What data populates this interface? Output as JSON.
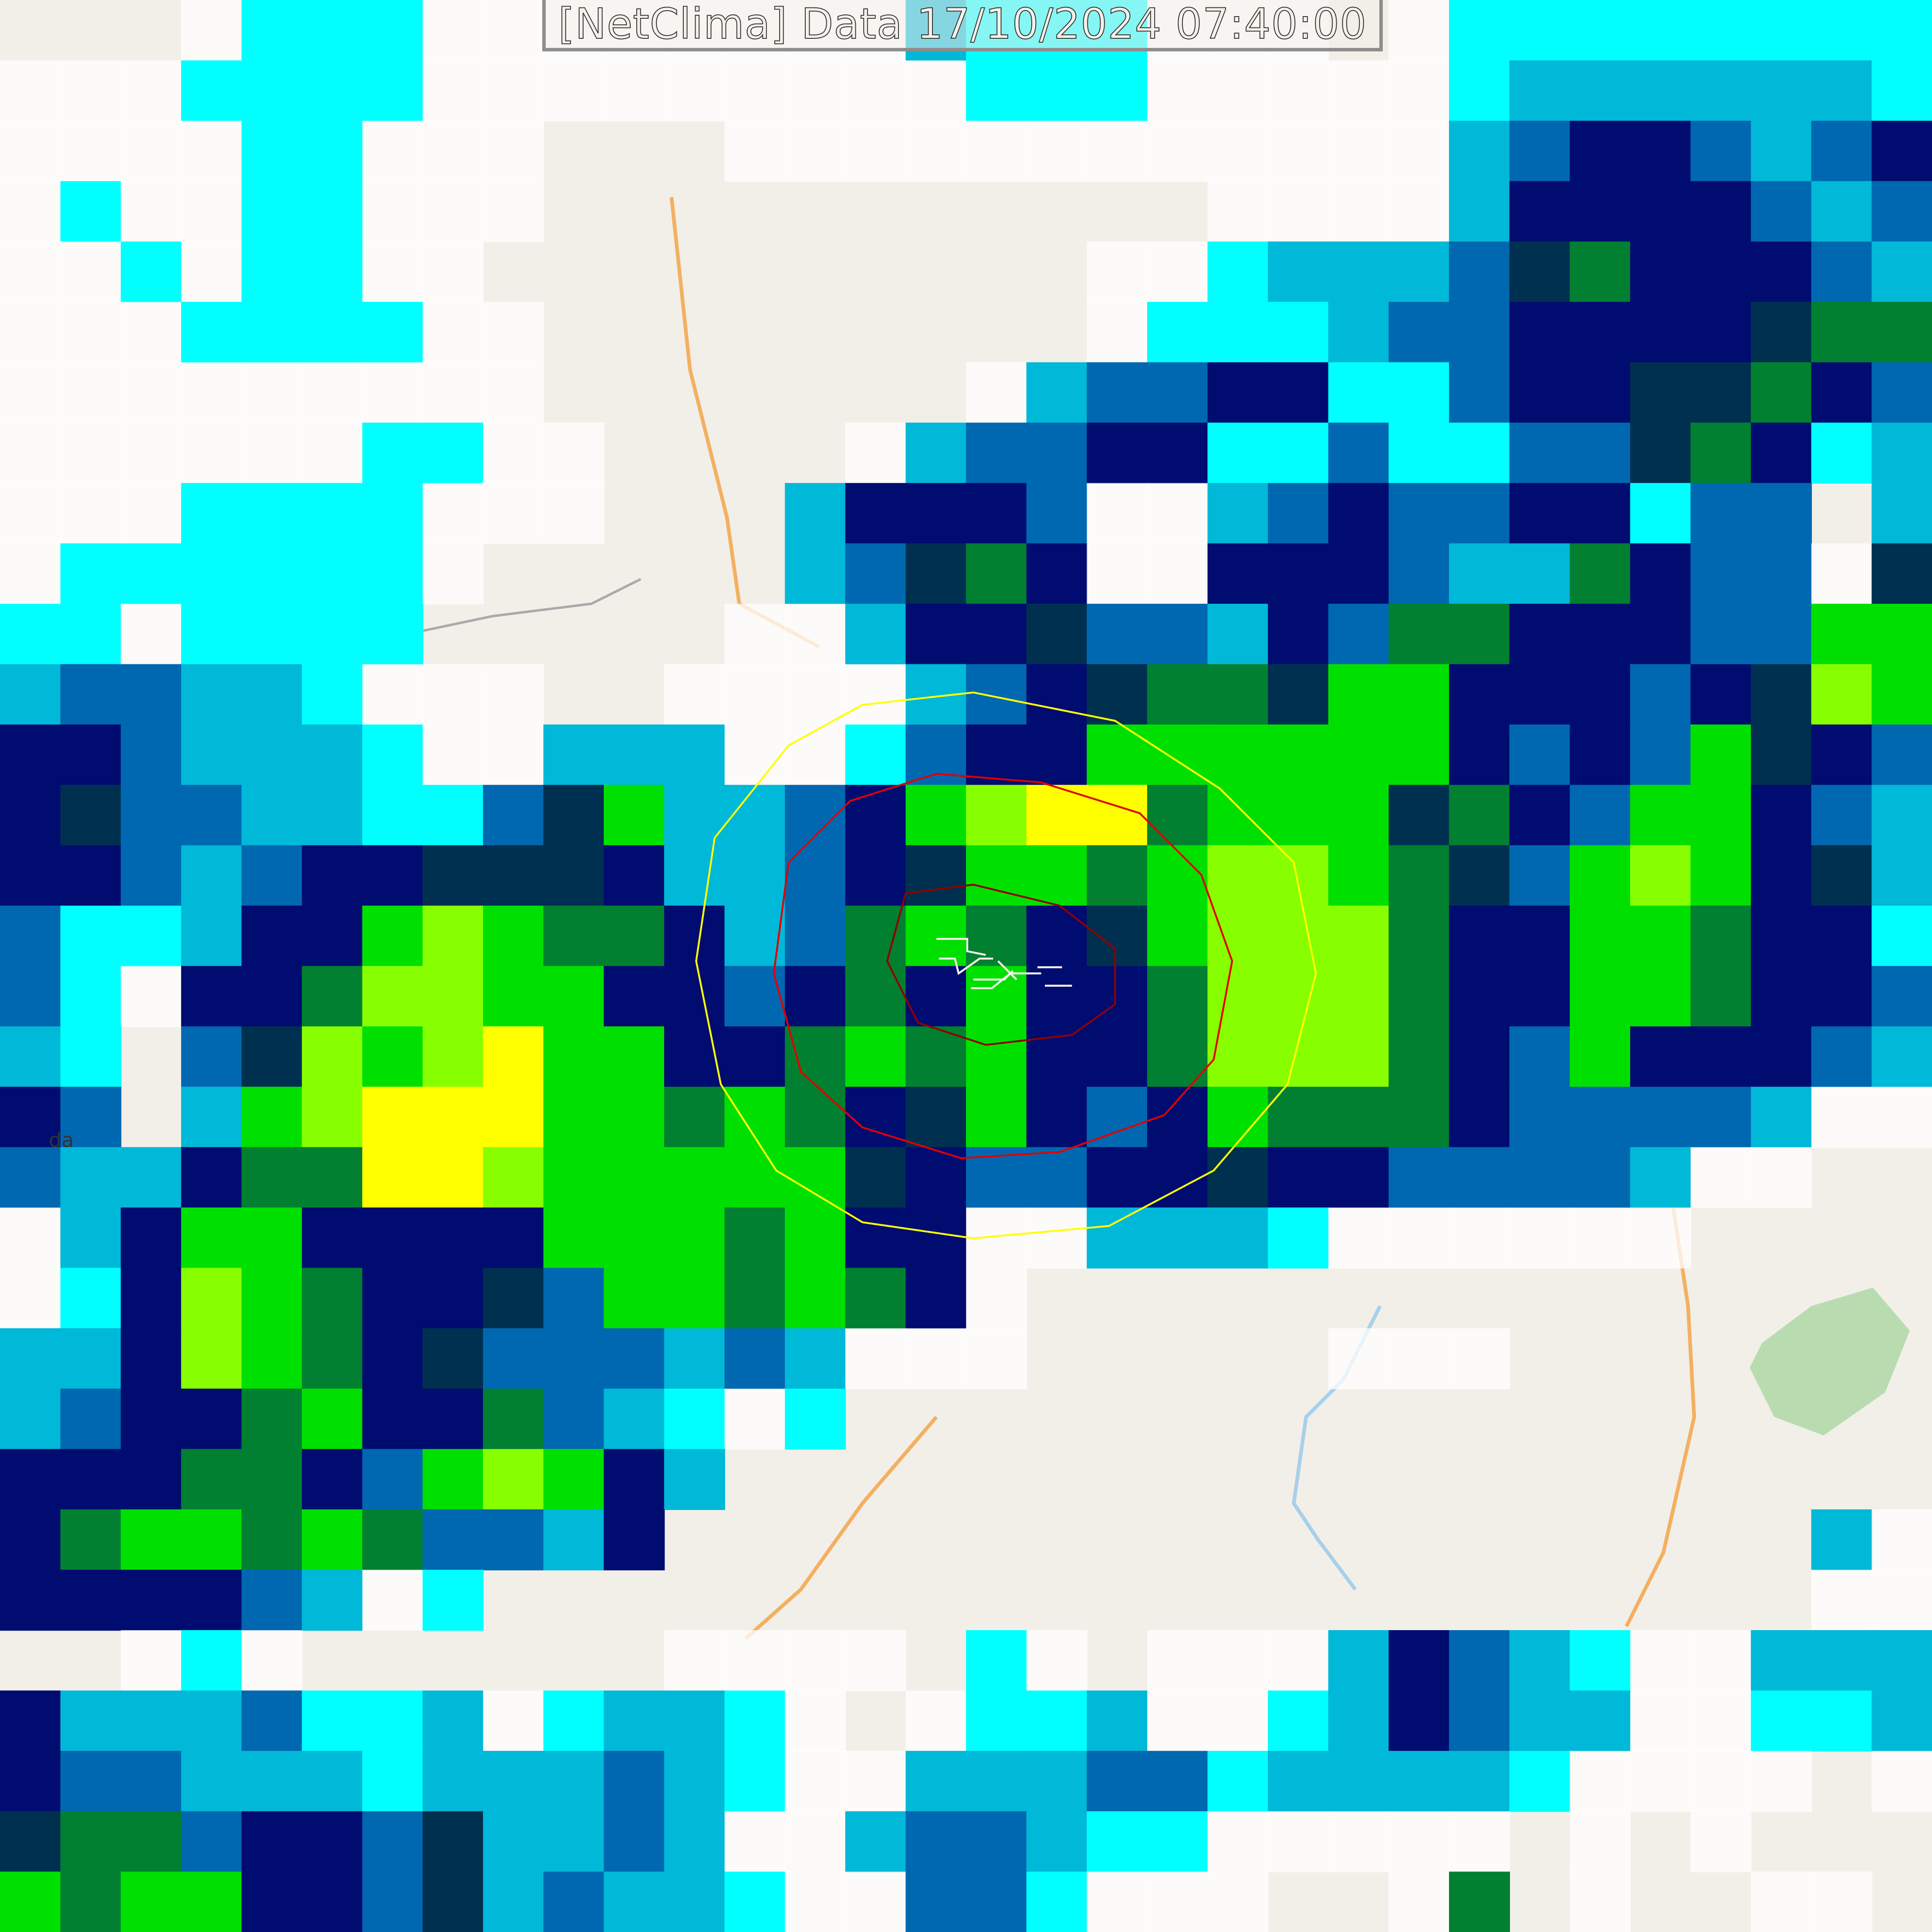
{
  "title": "[NetClima] Data 17/10/2024 07:40:00",
  "map_labels": {
    "place_fragment": "da"
  },
  "radar_palette": {
    "very_light": "#00ffff",
    "light": "#00b8d8",
    "moderate_low": "#0068b0",
    "moderate": "#000c70",
    "dark": "#003050",
    "heavy_low": "#008030",
    "heavy": "#00e000",
    "intense": "#88ff00",
    "very_intense": "#ffff00"
  },
  "range_rings": [
    {
      "color": "#ffff00"
    },
    {
      "color": "#e00000"
    },
    {
      "color": "#900000"
    }
  ],
  "basemap": {
    "land": "#f2efe9",
    "road": "#f4b060",
    "river": "#a8d0e8",
    "park": "#b8dcb0"
  }
}
